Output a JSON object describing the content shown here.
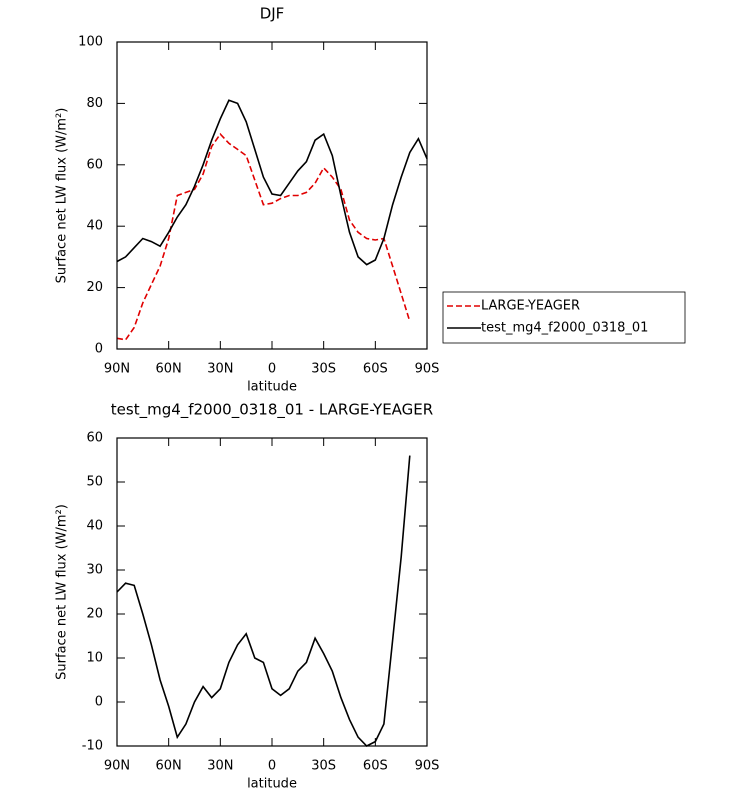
{
  "chart_data": [
    {
      "type": "line",
      "title": "DJF",
      "xlabel": "latitude",
      "ylabel": "Surface net LW flux (W/m²)",
      "x": [
        90,
        85,
        80,
        75,
        70,
        65,
        60,
        55,
        50,
        45,
        40,
        35,
        30,
        25,
        20,
        15,
        10,
        5,
        0,
        -5,
        -10,
        -15,
        -20,
        -25,
        -30,
        -35,
        -40,
        -45,
        -50,
        -55,
        -60,
        -65,
        -70,
        -75,
        -80,
        -85,
        -90
      ],
      "series": [
        {
          "name": "LARGE-YEAGER",
          "color": "#e00000",
          "dash": true,
          "values": [
            3.5,
            3,
            7,
            15,
            21,
            27,
            36,
            50,
            51,
            52,
            57,
            66,
            70,
            67,
            65,
            63,
            55,
            47,
            47.5,
            49,
            50,
            50,
            51,
            54,
            59,
            56,
            52,
            42,
            38,
            36,
            35.5,
            36,
            27,
            18,
            9,
            null,
            null
          ]
        },
        {
          "name": "test_mg4_f2000_0318_01",
          "color": "#000000",
          "dash": false,
          "values": [
            28.5,
            30,
            33,
            36,
            35,
            33.5,
            38,
            43,
            47,
            53,
            60,
            68,
            75,
            81,
            80,
            74,
            65,
            56,
            50.5,
            50,
            54,
            58,
            61,
            68,
            70,
            63,
            50,
            38,
            30,
            27.5,
            29,
            36,
            47,
            56,
            64,
            68.5,
            62
          ]
        }
      ],
      "xlim": [
        90,
        -90
      ],
      "xticks": [
        {
          "value": 90,
          "label": "90N"
        },
        {
          "value": 60,
          "label": "60N"
        },
        {
          "value": 30,
          "label": "30N"
        },
        0,
        {
          "value": -30,
          "label": "30S"
        },
        {
          "value": -60,
          "label": "60S"
        },
        {
          "value": -90,
          "label": "90S"
        }
      ],
      "ylim": [
        0,
        100
      ],
      "yticks": [
        0,
        20,
        40,
        60,
        80,
        100
      ],
      "legend": "right"
    },
    {
      "type": "line",
      "title": "test_mg4_f2000_0318_01 - LARGE-YEAGER",
      "xlabel": "latitude",
      "ylabel": "Surface net LW flux (W/m²)",
      "x": [
        90,
        85,
        80,
        75,
        70,
        65,
        60,
        55,
        50,
        45,
        40,
        35,
        30,
        25,
        20,
        15,
        10,
        5,
        0,
        -5,
        -10,
        -15,
        -20,
        -25,
        -30,
        -35,
        -40,
        -45,
        -50,
        -55,
        -60,
        -65,
        -70,
        -75,
        -80,
        -85,
        -90
      ],
      "series": [
        {
          "color": "#000000",
          "dash": false,
          "values": [
            25,
            27,
            26.5,
            20,
            13,
            5,
            -1,
            -8,
            -5,
            0,
            3.5,
            1,
            3,
            9,
            13,
            15.5,
            10,
            9,
            3,
            1.5,
            3,
            7,
            9,
            14.5,
            11,
            7,
            1,
            -4,
            -8,
            -10,
            -9,
            -5,
            14,
            33,
            56,
            null,
            null
          ]
        }
      ],
      "xlim": [
        90,
        -90
      ],
      "xticks": [
        {
          "value": 90,
          "label": "90N"
        },
        {
          "value": 60,
          "label": "60N"
        },
        {
          "value": 30,
          "label": "30N"
        },
        0,
        {
          "value": -30,
          "label": "30S"
        },
        {
          "value": -60,
          "label": "60S"
        },
        {
          "value": -90,
          "label": "90S"
        }
      ],
      "ylim": [
        -10,
        60
      ],
      "yticks": [
        -10,
        0,
        10,
        20,
        30,
        40,
        50,
        60
      ]
    }
  ]
}
